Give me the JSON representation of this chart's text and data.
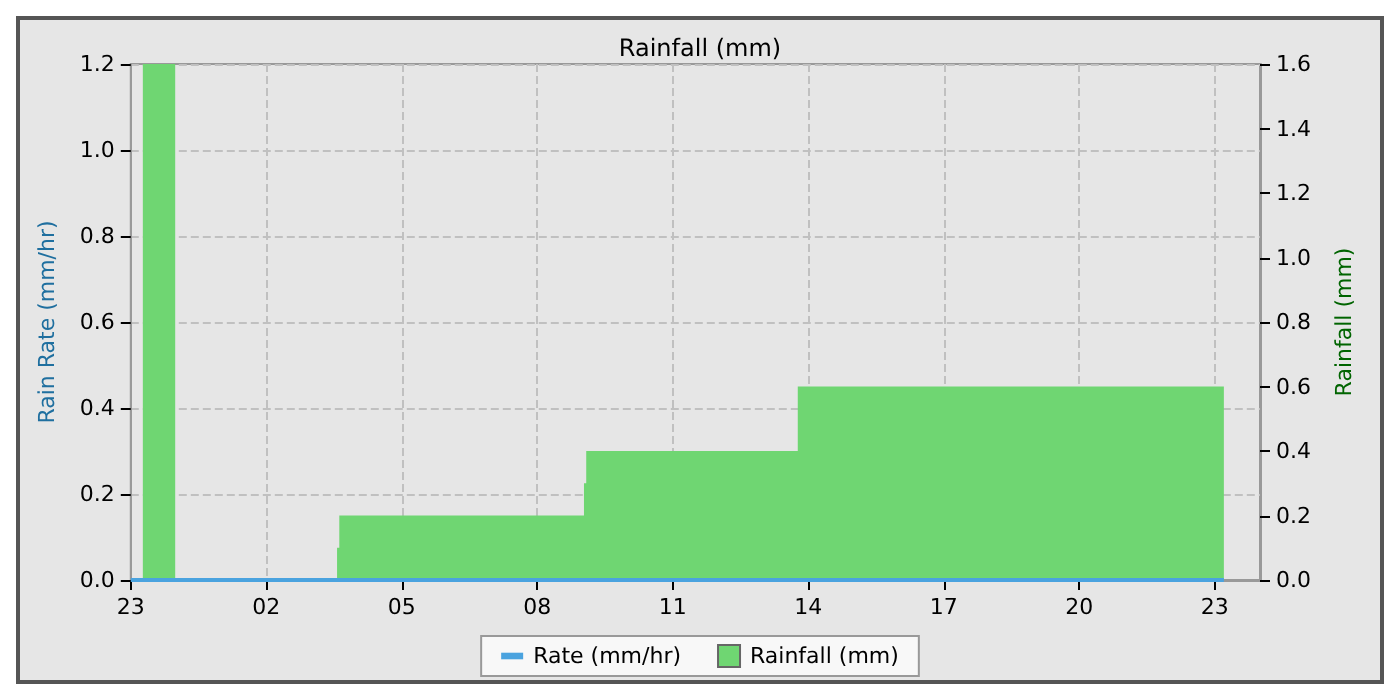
{
  "chart_data": {
    "type": "line",
    "title": "Rainfall (mm)",
    "ylabel": "Rain Rate (mm/hr)",
    "y2label": "Rainfall (mm)",
    "xlim": [
      "--01-01T23:00",
      "--01-03T00:00"
    ],
    "xticks": [
      {
        "value": "--01-01T23:00",
        "label": "23"
      },
      {
        "value": "--01-02T02:00",
        "label": "02"
      },
      {
        "value": "--01-02T05:00",
        "label": "05"
      },
      {
        "value": "--01-02T08:00",
        "label": "08"
      },
      {
        "value": "--01-02T11:00",
        "label": "11"
      },
      {
        "value": "--01-02T14:00",
        "label": "14"
      },
      {
        "value": "--01-02T17:00",
        "label": "17"
      },
      {
        "value": "--01-02T20:00",
        "label": "20"
      },
      {
        "value": "--01-02T23:00",
        "label": "23"
      }
    ],
    "ylim": [
      0,
      1.2
    ],
    "yticks": [
      {
        "value": 0,
        "label": "0.0"
      },
      0.2,
      0.4,
      0.6,
      0.8,
      {
        "value": 1,
        "label": "1.0"
      },
      1.2
    ],
    "y2lim": [
      0,
      1.6
    ],
    "y2ticks": [
      {
        "value": 0,
        "label": "0.0"
      },
      0.2,
      0.4,
      0.6,
      0.8,
      {
        "value": 1,
        "label": "1.0"
      },
      1.2,
      1.4,
      1.6
    ],
    "series": [
      {
        "name": "Rate (mm/hr)",
        "color": "#4aa3df",
        "x": [
          "--01-01T23:00",
          "--01-02T23:12"
        ],
        "values": [
          0,
          0
        ]
      },
      {
        "name": "Rainfall (mm)",
        "type": "area",
        "axis": "y2",
        "color": "#6fd672",
        "x": [
          "--01-01T23:16",
          "--01-01T23:16",
          "--01-01T23:59",
          "--01-01T23:59",
          "--01-02T03:34",
          "--01-02T03:34",
          "--01-02T03:37",
          "--01-02T03:37",
          "--01-02T09:02",
          "--01-02T09:02",
          "--01-02T09:05",
          "--01-02T09:05",
          "--01-02T13:46",
          "--01-02T13:46",
          "--01-02T23:12",
          "--01-02T23:12"
        ],
        "values": [
          0,
          1.6,
          1.6,
          0,
          0,
          0.1,
          0.1,
          0.2,
          0.2,
          0.3,
          0.3,
          0.4,
          0.4,
          0.6,
          0.6,
          0
        ]
      }
    ],
    "grid": true,
    "legend": "bottom",
    "marker": "none"
  }
}
